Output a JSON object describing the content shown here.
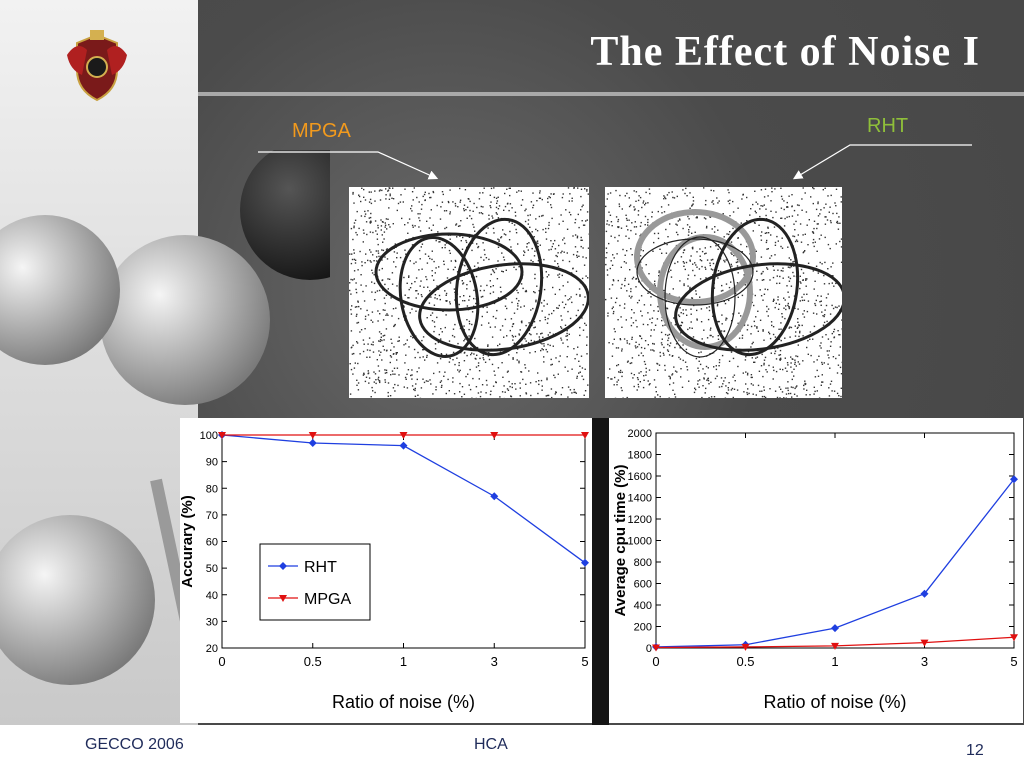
{
  "slide": {
    "title": "The Effect of Noise I",
    "label_mpga": "MPGA",
    "label_rht": "RHT"
  },
  "footer": {
    "left": "GECCO 2006",
    "center": "HCA",
    "page_number": "12"
  },
  "colors": {
    "rht": "#1f3fe0",
    "mpga": "#e01010",
    "label_mpga": "#f29a1d",
    "label_rht": "#8fbf3a"
  },
  "chart_data": [
    {
      "type": "line",
      "categories": [
        "0",
        "0.5",
        "1",
        "3",
        "5"
      ],
      "series": [
        {
          "name": "RHT",
          "values": [
            100,
            97,
            96,
            77,
            52
          ]
        },
        {
          "name": "MPGA",
          "values": [
            100,
            100,
            100,
            100,
            100
          ]
        }
      ],
      "xlabel": "Ratio of noise (%)",
      "ylabel": "Accurary (%)",
      "ylim": [
        20,
        100
      ],
      "yticks": [
        "20",
        "30",
        "40",
        "50",
        "60",
        "70",
        "80",
        "90",
        "100"
      ],
      "legend": "lower-left"
    },
    {
      "type": "line",
      "categories": [
        "0",
        "0.5",
        "1",
        "3",
        "5"
      ],
      "series": [
        {
          "values": [
            10,
            30,
            185,
            505,
            1570
          ]
        },
        {
          "values": [
            5,
            10,
            20,
            50,
            100
          ]
        }
      ],
      "xlabel": "Ratio of noise (%)",
      "ylabel": "Average cpu time (%)",
      "ylim": [
        0,
        2000
      ],
      "yticks": [
        "0",
        "200",
        "400",
        "600",
        "800",
        "1000",
        "1200",
        "1400",
        "1600",
        "1800",
        "2000"
      ]
    }
  ]
}
